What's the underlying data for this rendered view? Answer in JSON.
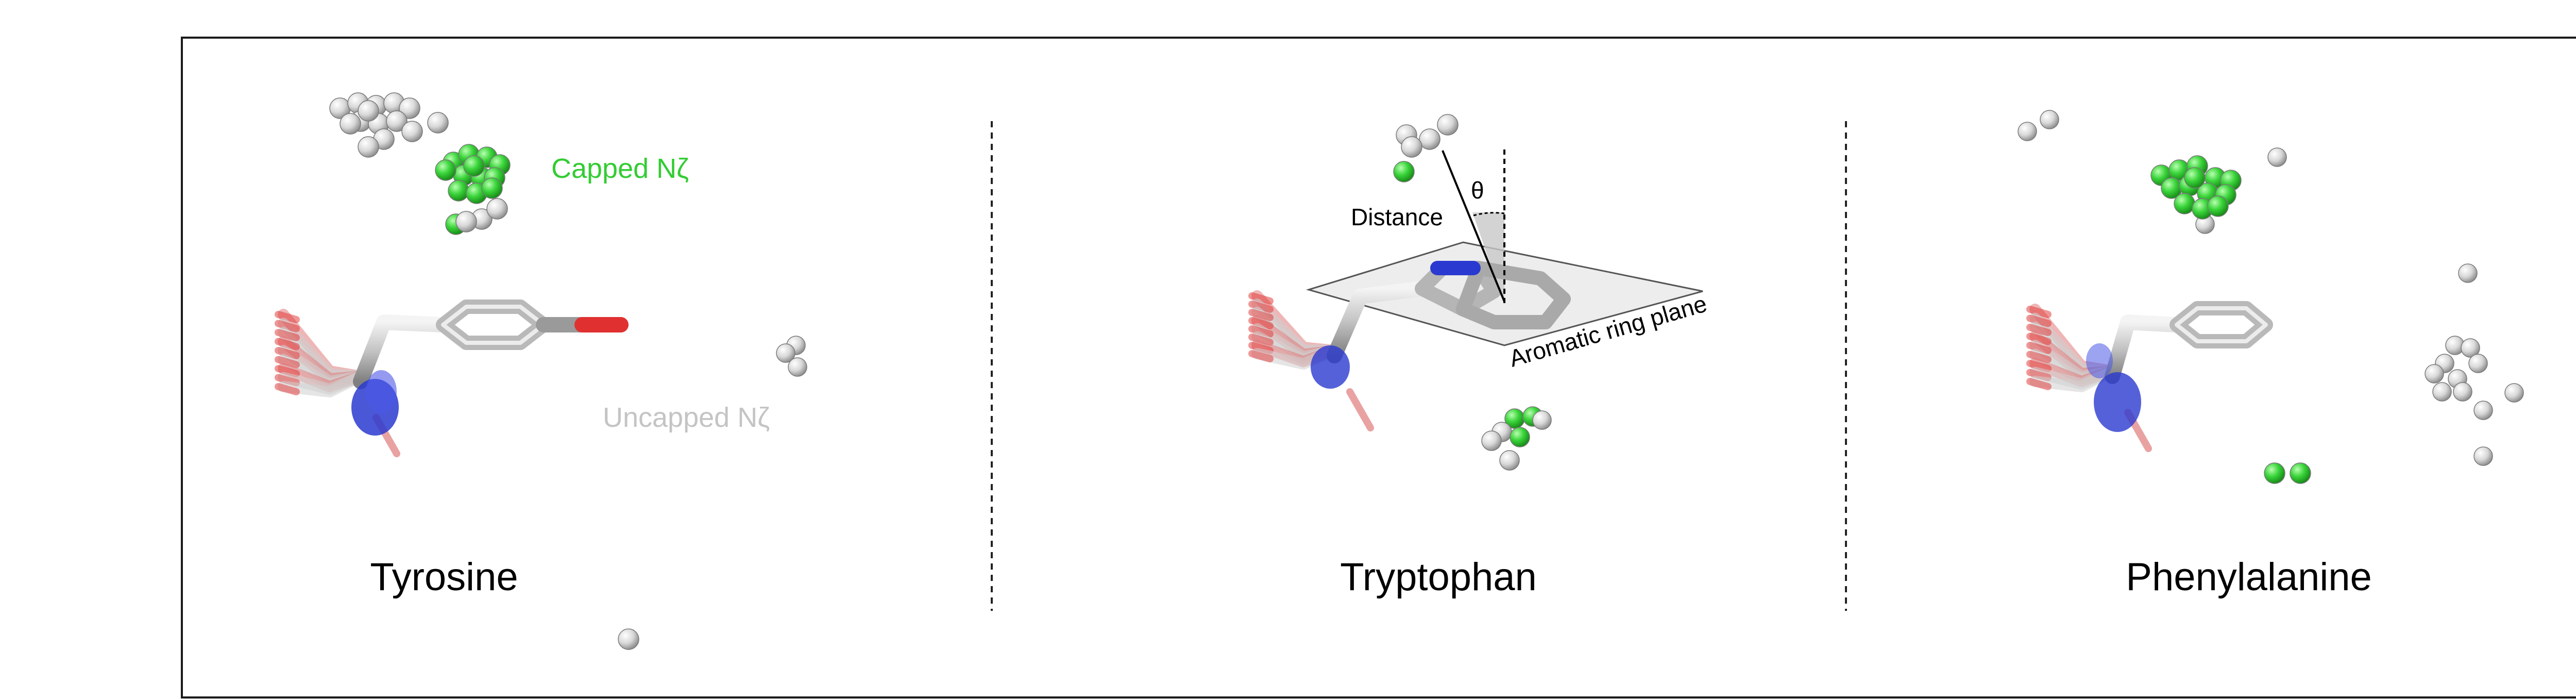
{
  "panels": [
    {
      "title": "Tyrosine"
    },
    {
      "title": "Tryptophan"
    },
    {
      "title": "Phenylalanine"
    }
  ],
  "annotations": {
    "capped": "Capped Nζ",
    "uncapped": "Uncapped Nζ",
    "distance": "Distance",
    "theta": "θ",
    "ring_plane": "Aromatic ring plane"
  },
  "colors": {
    "frame": "#1a1a1a",
    "capped": "#33cc33",
    "uncapped": "#c4c4c4",
    "stick": "#bdbdbd",
    "oxygen": "#e03030",
    "nitrogen": "#2a3ad0",
    "plane": "#e9e9e9"
  }
}
